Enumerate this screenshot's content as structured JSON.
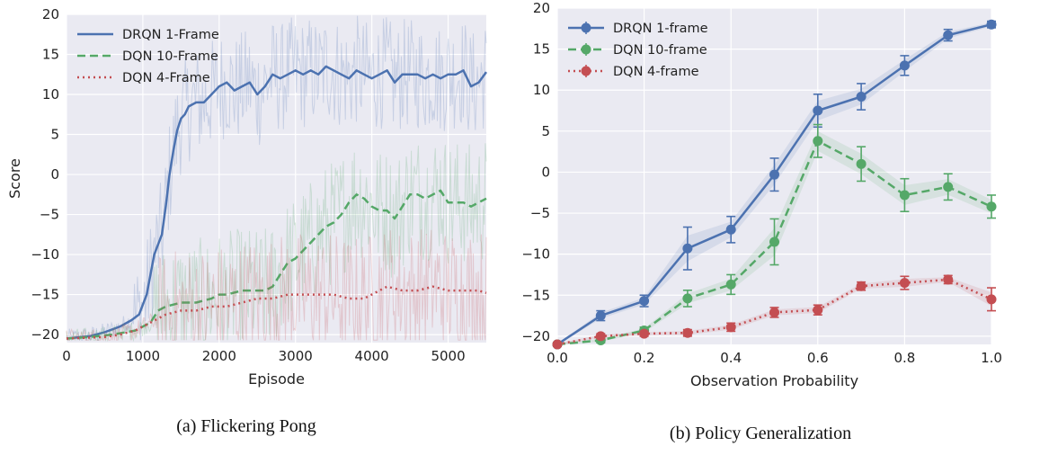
{
  "captions": {
    "a": "(a) Flickering Pong",
    "b": "(b) Policy Generalization"
  },
  "colors": {
    "blue": "#4c72b0",
    "green": "#55a868",
    "red": "#c44e52",
    "plot_bg": "#eaeaf2",
    "grid": "#ffffff"
  },
  "chart_data": [
    {
      "type": "line",
      "title": "",
      "xlabel": "Episode",
      "ylabel": "Score",
      "xlim": [
        0,
        5500
      ],
      "ylim": [
        -21,
        20
      ],
      "xticks": [
        0,
        1000,
        2000,
        3000,
        4000,
        5000
      ],
      "yticks": [
        -20,
        -15,
        -10,
        -5,
        0,
        5,
        10,
        15,
        20
      ],
      "grid": true,
      "legend": "top-left",
      "series": [
        {
          "name": "DRQN 1-Frame",
          "color": "#4c72b0",
          "style": "solid",
          "x": [
            0,
            300,
            500,
            700,
            850,
            950,
            1050,
            1150,
            1250,
            1300,
            1350,
            1400,
            1450,
            1500,
            1550,
            1600,
            1700,
            1800,
            1900,
            2000,
            2100,
            2200,
            2300,
            2400,
            2500,
            2600,
            2700,
            2800,
            2900,
            3000,
            3100,
            3200,
            3300,
            3400,
            3500,
            3600,
            3700,
            3800,
            3900,
            4000,
            4100,
            4200,
            4300,
            4400,
            4500,
            4600,
            4700,
            4800,
            4900,
            5000,
            5100,
            5200,
            5300,
            5400,
            5500
          ],
          "y": [
            -20.5,
            -20.2,
            -19.7,
            -19,
            -18.2,
            -17.5,
            -15,
            -10,
            -7.5,
            -4,
            0,
            3,
            5.5,
            7,
            7.5,
            8.5,
            9,
            9,
            10,
            11,
            11.5,
            10.5,
            11,
            11.5,
            10,
            11,
            12.5,
            12,
            12.5,
            13,
            12.5,
            13,
            12.5,
            13.5,
            13,
            12.5,
            12,
            13,
            12.5,
            12,
            12.5,
            13,
            11.5,
            12.5,
            12.5,
            12.5,
            12,
            12.5,
            12,
            12.5,
            12.5,
            13,
            11,
            11.5,
            12.8
          ]
        },
        {
          "name": "DQN 10-Frame",
          "color": "#55a868",
          "style": "dashed",
          "x": [
            0,
            300,
            600,
            900,
            1100,
            1200,
            1300,
            1500,
            1700,
            1900,
            2000,
            2100,
            2300,
            2500,
            2600,
            2700,
            2800,
            2900,
            3000,
            3100,
            3200,
            3300,
            3400,
            3500,
            3600,
            3700,
            3800,
            3900,
            4000,
            4100,
            4200,
            4300,
            4400,
            4500,
            4600,
            4700,
            4800,
            4900,
            5000,
            5100,
            5200,
            5300,
            5400,
            5500
          ],
          "y": [
            -20.5,
            -20.3,
            -20,
            -19.5,
            -18.5,
            -17,
            -16.5,
            -16,
            -16,
            -15.5,
            -15,
            -15,
            -14.5,
            -14.5,
            -14.5,
            -14,
            -12.5,
            -11,
            -10.5,
            -9.5,
            -8.5,
            -7.5,
            -6.5,
            -6,
            -5,
            -3.5,
            -2.5,
            -3,
            -4,
            -4.5,
            -4.5,
            -5.5,
            -4,
            -2.5,
            -2.5,
            -3,
            -2.5,
            -2,
            -3.5,
            -3.5,
            -3.5,
            -4,
            -3.5,
            -3
          ]
        },
        {
          "name": "DQN 4-Frame",
          "color": "#c44e52",
          "style": "dotted",
          "x": [
            0,
            500,
            700,
            900,
            1000,
            1100,
            1300,
            1500,
            1700,
            1900,
            2100,
            2300,
            2500,
            2700,
            2900,
            3100,
            3300,
            3500,
            3700,
            3900,
            4100,
            4200,
            4400,
            4600,
            4800,
            5000,
            5200,
            5400,
            5500
          ],
          "y": [
            -20.5,
            -20.3,
            -20,
            -19.5,
            -19,
            -18.5,
            -17.5,
            -17,
            -17,
            -16.5,
            -16.5,
            -16,
            -15.5,
            -15.5,
            -15,
            -15,
            -15,
            -15,
            -15.5,
            -15.5,
            -14.5,
            -14,
            -14.5,
            -14.5,
            -14,
            -14.5,
            -14.5,
            -14.5,
            -14.8
          ]
        }
      ]
    },
    {
      "type": "line",
      "title": "",
      "xlabel": "Observation Probability",
      "ylabel": "",
      "xlim": [
        0,
        1
      ],
      "ylim": [
        -21,
        20
      ],
      "xticks": [
        0.0,
        0.2,
        0.4,
        0.6,
        0.8,
        1.0
      ],
      "xticklabels": [
        "0.0",
        "0.2",
        "0.4",
        "0.6",
        "0.8",
        "1.0"
      ],
      "yticks": [
        -20,
        -15,
        -10,
        -5,
        0,
        5,
        10,
        15,
        20
      ],
      "grid": true,
      "legend": "top-left",
      "series": [
        {
          "name": "DRQN 1-frame",
          "color": "#4c72b0",
          "style": "solid",
          "x": [
            0,
            0.1,
            0.2,
            0.3,
            0.4,
            0.5,
            0.6,
            0.7,
            0.8,
            0.9,
            1.0
          ],
          "y": [
            -21,
            -17.5,
            -15.7,
            -9.3,
            -7,
            -0.3,
            7.5,
            9.2,
            13,
            16.7,
            18
          ],
          "err": [
            0.2,
            0.6,
            0.7,
            2.6,
            1.6,
            2.0,
            2.0,
            1.6,
            1.2,
            0.7,
            0.4
          ]
        },
        {
          "name": "DQN 10-frame",
          "color": "#55a868",
          "style": "dashed",
          "x": [
            0,
            0.1,
            0.2,
            0.3,
            0.4,
            0.5,
            0.6,
            0.7,
            0.8,
            0.9,
            1.0
          ],
          "y": [
            -21,
            -20.5,
            -19.3,
            -15.4,
            -13.7,
            -8.5,
            3.8,
            1,
            -2.8,
            -1.8,
            -4.2
          ],
          "err": [
            0.2,
            0.3,
            0.4,
            1.0,
            1.2,
            2.8,
            2.0,
            2.1,
            2.0,
            1.6,
            1.4
          ]
        },
        {
          "name": "DQN 4-frame",
          "color": "#c44e52",
          "style": "dotted",
          "x": [
            0,
            0.1,
            0.2,
            0.3,
            0.4,
            0.5,
            0.6,
            0.7,
            0.8,
            0.9,
            1.0
          ],
          "y": [
            -21,
            -20,
            -19.7,
            -19.6,
            -18.9,
            -17.1,
            -16.8,
            -13.9,
            -13.5,
            -13.1,
            -15.5
          ],
          "err": [
            0.2,
            0.3,
            0.3,
            0.4,
            0.5,
            0.6,
            0.6,
            0.5,
            0.8,
            0.5,
            1.4
          ]
        }
      ]
    }
  ]
}
